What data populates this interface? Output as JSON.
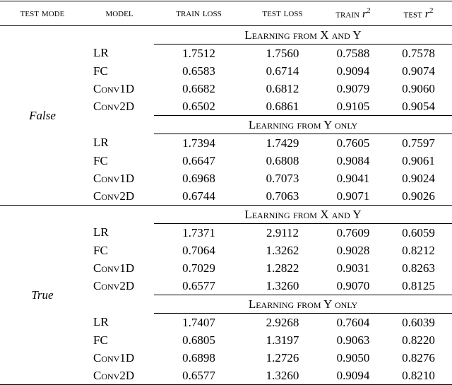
{
  "table": {
    "headers": [
      "test mode",
      "model",
      "train loss",
      "test loss",
      {
        "prefix": "train",
        "symbol": "r",
        "exponent": "2"
      },
      {
        "prefix": "test",
        "symbol": "r",
        "exponent": "2"
      }
    ],
    "groups": [
      {
        "mode": "False",
        "blocks": [
          {
            "title": "Learning from X and Y",
            "rows": [
              [
                "LR",
                "1.7512",
                "1.7560",
                "0.7588",
                "0.7578"
              ],
              [
                "FC",
                "0.6583",
                "0.6714",
                "0.9094",
                "0.9074"
              ],
              [
                "Conv1D",
                "0.6682",
                "0.6812",
                "0.9079",
                "0.9060"
              ],
              [
                "Conv2D",
                "0.6502",
                "0.6861",
                "0.9105",
                "0.9054"
              ]
            ]
          },
          {
            "title": "Learning from Y only",
            "rows": [
              [
                "LR",
                "1.7394",
                "1.7429",
                "0.7605",
                "0.7597"
              ],
              [
                "FC",
                "0.6647",
                "0.6808",
                "0.9084",
                "0.9061"
              ],
              [
                "Conv1D",
                "0.6968",
                "0.7073",
                "0.9041",
                "0.9024"
              ],
              [
                "Conv2D",
                "0.6744",
                "0.7063",
                "0.9071",
                "0.9026"
              ]
            ]
          }
        ]
      },
      {
        "mode": "True",
        "blocks": [
          {
            "title": "Learning from X and Y",
            "rows": [
              [
                "LR",
                "1.7371",
                "2.9112",
                "0.7609",
                "0.6059"
              ],
              [
                "FC",
                "0.7064",
                "1.3262",
                "0.9028",
                "0.8212"
              ],
              [
                "Conv1D",
                "0.7029",
                "1.2822",
                "0.9031",
                "0.8263"
              ],
              [
                "Conv2D",
                "0.6577",
                "1.3260",
                "0.9070",
                "0.8125"
              ]
            ]
          },
          {
            "title": "Learning from Y only",
            "rows": [
              [
                "LR",
                "1.7407",
                "2.9268",
                "0.7604",
                "0.6039"
              ],
              [
                "FC",
                "0.6805",
                "1.3197",
                "0.9063",
                "0.8220"
              ],
              [
                "Conv1D",
                "0.6898",
                "1.2726",
                "0.9050",
                "0.8276"
              ],
              [
                "Conv2D",
                "0.6577",
                "1.3260",
                "0.9094",
                "0.8210"
              ]
            ]
          }
        ]
      }
    ]
  }
}
